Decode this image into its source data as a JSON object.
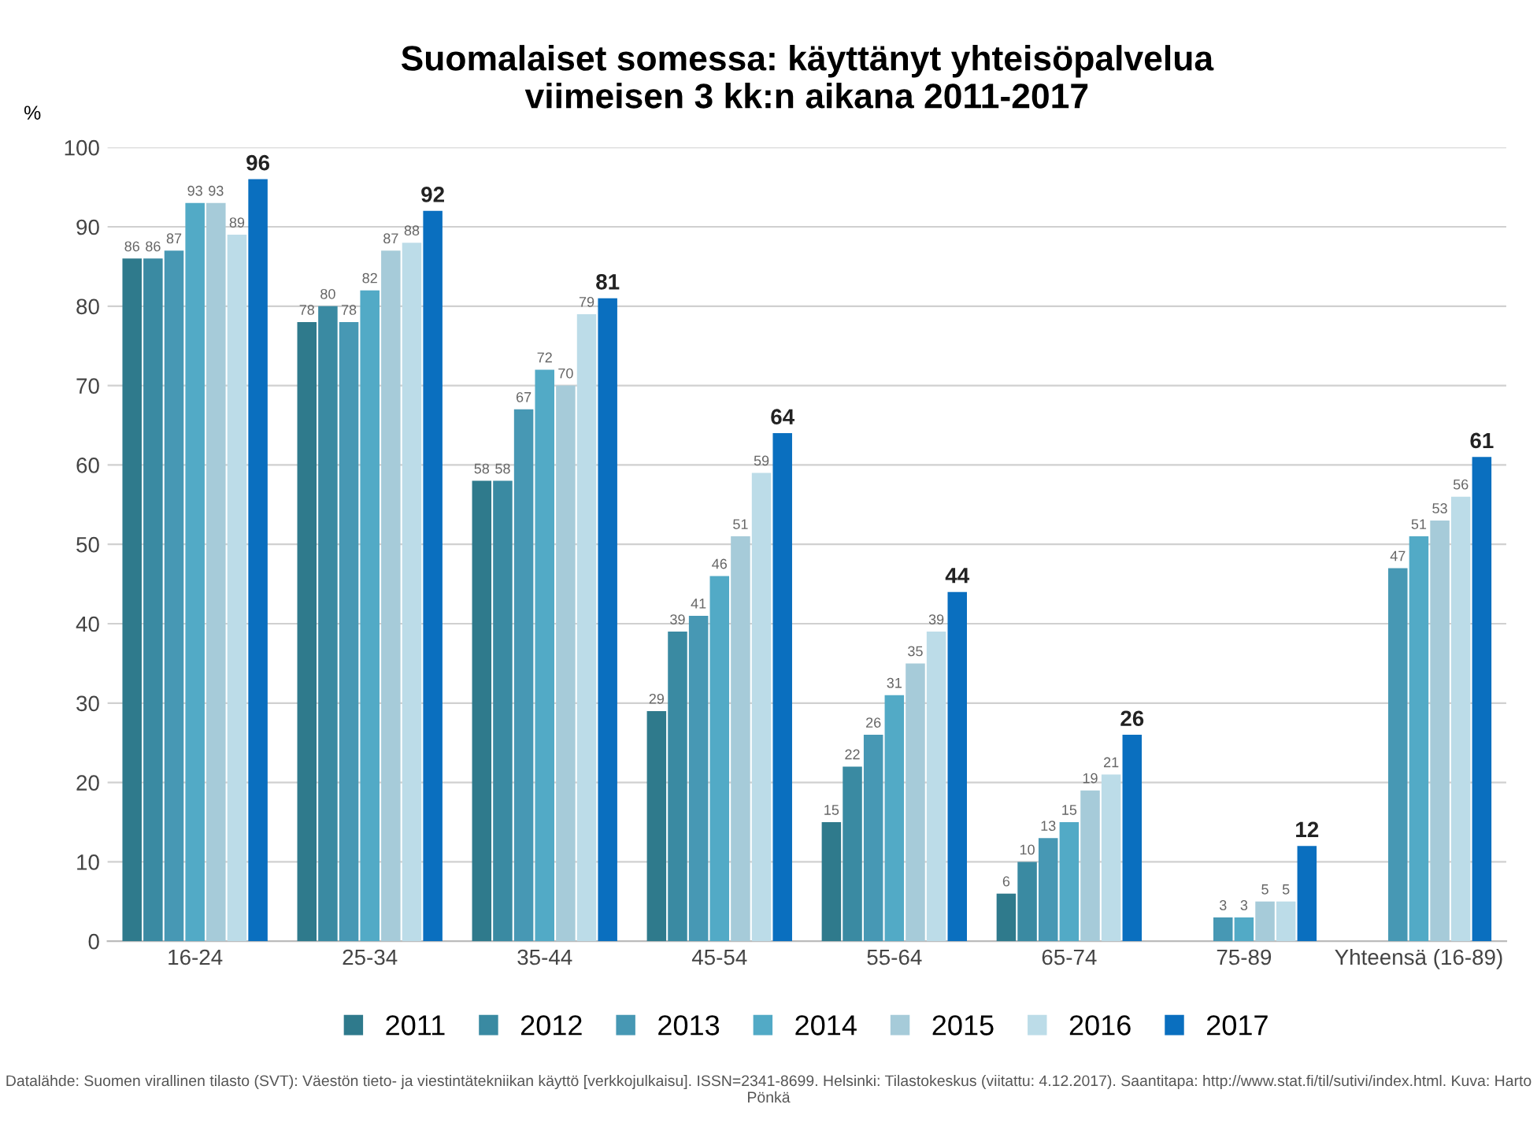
{
  "chart_data": {
    "type": "bar",
    "title": "Suomalaiset somessa: käyttänyt yhteisöpalvelua\nviimeisen 3 kk:n aikana 2011-2017",
    "ylabel": "%",
    "categories": [
      "16-24",
      "25-34",
      "35-44",
      "45-54",
      "55-64",
      "65-74",
      "75-89",
      "Yhteensä (16-89)"
    ],
    "series": [
      {
        "name": "2011",
        "color": "#2f7a8c",
        "values": [
          86,
          78,
          58,
          29,
          15,
          6,
          null,
          null
        ]
      },
      {
        "name": "2012",
        "color": "#3a8aa2",
        "values": [
          86,
          80,
          58,
          39,
          22,
          10,
          null,
          null
        ]
      },
      {
        "name": "2013",
        "color": "#4798b4",
        "values": [
          87,
          78,
          67,
          41,
          26,
          13,
          3,
          47
        ]
      },
      {
        "name": "2014",
        "color": "#52aac6",
        "values": [
          93,
          82,
          72,
          46,
          31,
          15,
          3,
          51
        ]
      },
      {
        "name": "2015",
        "color": "#a6cbd9",
        "values": [
          93,
          87,
          70,
          51,
          35,
          19,
          5,
          53
        ]
      },
      {
        "name": "2016",
        "color": "#bcdce8",
        "values": [
          89,
          88,
          79,
          59,
          39,
          21,
          5,
          56
        ]
      },
      {
        "name": "2017",
        "color": "#0a6fbf",
        "values": [
          96,
          92,
          81,
          64,
          44,
          26,
          12,
          61
        ]
      }
    ],
    "ylim": [
      0,
      100
    ],
    "yticks": [
      0,
      10,
      20,
      30,
      40,
      50,
      60,
      70,
      80,
      90,
      100
    ],
    "grid": "y",
    "legend": "bottom",
    "data_labels": true,
    "annotations": [
      "Datalähde: Suomen virallinen tilasto (SVT): Väestön tieto- ja viestintätekniikan käyttö [verkkojulkaisu]. ISSN=2341-8699. Helsinki: Tilastokeskus (viitattu: 4.12.2017). Saantitapa: http://www.stat.fi/til/sutivi/index.html. Kuva: Harto Pönkä"
    ]
  }
}
